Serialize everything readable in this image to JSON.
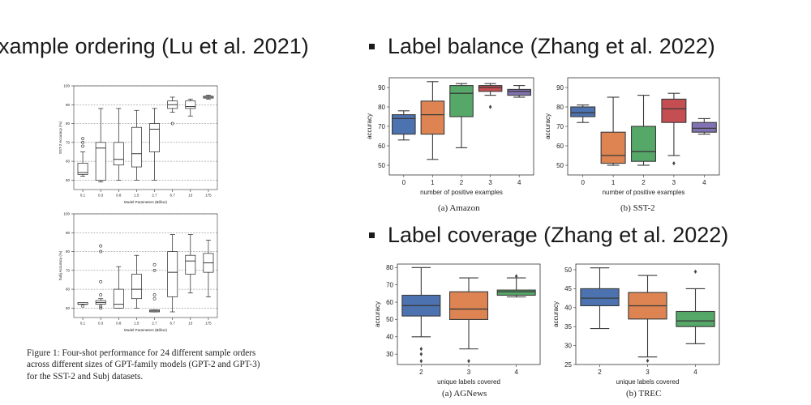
{
  "headings": {
    "ordering": "xample ordering (Lu et al. 2021)",
    "balance": "Label balance (Zhang et al. 2022)",
    "coverage": "Label coverage (Zhang et al. 2022)"
  },
  "figure_caption": "Figure 1: Four-shot performance for 24 different sample orders across different sizes of GPT-family models (GPT-2 and GPT-3) for the SST-2 and Subj datasets.",
  "captions": {
    "amazon": "(a) Amazon",
    "sst2": "(b) SST-2",
    "agnews": "(a) AGNews",
    "trec": "(b) TREC"
  },
  "colors": {
    "blue": "#4c72b0",
    "orange": "#dd8452",
    "green": "#55a868",
    "red": "#c44e52",
    "purple": "#8172b3"
  },
  "chart_data": [
    {
      "id": "sst2_size",
      "type": "box",
      "title": "",
      "xlabel": "Model Parameters (Billion)",
      "ylabel": "SST-2 Accuracy (%)",
      "ylim": [
        45,
        100
      ],
      "yticks": [
        50,
        60,
        70,
        80,
        90,
        100
      ],
      "grid": "horizontal dashed",
      "categories": [
        "0.1",
        "0.3",
        "0.8",
        "1.5",
        "2.7",
        "6.7",
        "13",
        "175"
      ],
      "boxes": [
        {
          "whislo": 52,
          "q1": 53,
          "med": 54,
          "q3": 59,
          "whishi": 65,
          "fliers": [
            68,
            70,
            72
          ],
          "color": "#ffffff"
        },
        {
          "whislo": 49,
          "q1": 50,
          "med": 67,
          "q3": 70,
          "whishi": 88,
          "fliers": [],
          "color": "#ffffff"
        },
        {
          "whislo": 50,
          "q1": 58,
          "med": 61,
          "q3": 70,
          "whishi": 88,
          "fliers": [],
          "color": "#ffffff"
        },
        {
          "whislo": 50,
          "q1": 57,
          "med": 64,
          "q3": 78,
          "whishi": 87,
          "fliers": [],
          "color": "#ffffff"
        },
        {
          "whislo": 50,
          "q1": 65,
          "med": 77,
          "q3": 80,
          "whishi": 88,
          "fliers": [],
          "color": "#ffffff"
        },
        {
          "whislo": 86,
          "q1": 88,
          "med": 90,
          "q3": 92,
          "whishi": 94,
          "fliers": [
            80
          ],
          "color": "#ffffff"
        },
        {
          "whislo": 84,
          "q1": 88,
          "med": 89,
          "q3": 92,
          "whishi": 93,
          "fliers": [],
          "color": "#ffffff"
        },
        {
          "whislo": 93,
          "q1": 93.5,
          "med": 94,
          "q3": 94.5,
          "whishi": 95,
          "fliers": [],
          "color": "#ffffff"
        }
      ]
    },
    {
      "id": "subj_size",
      "type": "box",
      "title": "",
      "xlabel": "Model Parameters (Billion)",
      "ylabel": "Subj Accuracy (%)",
      "ylim": [
        45,
        100
      ],
      "yticks": [
        50,
        60,
        70,
        80,
        90,
        100
      ],
      "grid": "horizontal dashed",
      "categories": [
        "0.1",
        "0.3",
        "0.8",
        "1.5",
        "2.7",
        "6.7",
        "13",
        "175"
      ],
      "boxes": [
        {
          "whislo": 52,
          "q1": 52,
          "med": 52,
          "q3": 53,
          "whishi": 53,
          "fliers": [
            51
          ],
          "color": "#ffffff"
        },
        {
          "whislo": 52,
          "q1": 52,
          "med": 53,
          "q3": 54,
          "whishi": 55,
          "fliers": [
            50,
            51,
            57,
            64,
            80,
            83
          ],
          "color": "#ffffff"
        },
        {
          "whislo": 50,
          "q1": 50,
          "med": 52,
          "q3": 60,
          "whishi": 72,
          "fliers": [],
          "color": "#ffffff"
        },
        {
          "whislo": 50,
          "q1": 55,
          "med": 60,
          "q3": 68,
          "whishi": 78,
          "fliers": [],
          "color": "#ffffff"
        },
        {
          "whislo": 48,
          "q1": 48,
          "med": 48.5,
          "q3": 49,
          "whishi": 49,
          "fliers": [
            55,
            57,
            70,
            73
          ],
          "color": "#ffffff"
        },
        {
          "whislo": 48,
          "q1": 56,
          "med": 69,
          "q3": 80,
          "whishi": 89,
          "fliers": [],
          "color": "#ffffff"
        },
        {
          "whislo": 58,
          "q1": 68,
          "med": 75,
          "q3": 78,
          "whishi": 89,
          "fliers": [],
          "color": "#ffffff"
        },
        {
          "whislo": 56,
          "q1": 69,
          "med": 74,
          "q3": 79,
          "whishi": 86,
          "fliers": [],
          "color": "#ffffff"
        }
      ]
    },
    {
      "id": "amazon",
      "type": "box",
      "title": "",
      "xlabel": "number of positive examples",
      "ylabel": "accuracy",
      "ylim": [
        45,
        95
      ],
      "yticks": [
        50,
        60,
        70,
        80,
        90
      ],
      "grid": "none",
      "categories": [
        "0",
        "1",
        "2",
        "3",
        "4"
      ],
      "boxes": [
        {
          "whislo": 63,
          "q1": 66,
          "med": 74,
          "q3": 76,
          "whishi": 78,
          "fliers": [],
          "color": "#4c72b0"
        },
        {
          "whislo": 53,
          "q1": 66,
          "med": 76,
          "q3": 83,
          "whishi": 93,
          "fliers": [],
          "color": "#dd8452"
        },
        {
          "whislo": 59,
          "q1": 75,
          "med": 87,
          "q3": 91,
          "whishi": 92,
          "fliers": [],
          "color": "#55a868"
        },
        {
          "whislo": 86,
          "q1": 88,
          "med": 90,
          "q3": 91,
          "whishi": 92,
          "fliers": [
            80
          ],
          "color": "#c44e52"
        },
        {
          "whislo": 85,
          "q1": 86,
          "med": 88,
          "q3": 89,
          "whishi": 91,
          "fliers": [],
          "color": "#8172b3"
        }
      ]
    },
    {
      "id": "sst2_balance",
      "type": "box",
      "title": "",
      "xlabel": "number of positive examples",
      "ylabel": "accuracy",
      "ylim": [
        45,
        95
      ],
      "yticks": [
        50,
        60,
        70,
        80,
        90
      ],
      "grid": "none",
      "categories": [
        "0",
        "1",
        "2",
        "3",
        "4"
      ],
      "boxes": [
        {
          "whislo": 72,
          "q1": 75,
          "med": 77,
          "q3": 80,
          "whishi": 81,
          "fliers": [],
          "color": "#4c72b0"
        },
        {
          "whislo": 50,
          "q1": 51,
          "med": 55,
          "q3": 67,
          "whishi": 85,
          "fliers": [],
          "color": "#dd8452"
        },
        {
          "whislo": 50,
          "q1": 52,
          "med": 57,
          "q3": 70,
          "whishi": 86,
          "fliers": [],
          "color": "#55a868"
        },
        {
          "whislo": 55,
          "q1": 72,
          "med": 79,
          "q3": 84,
          "whishi": 87,
          "fliers": [
            51
          ],
          "color": "#c44e52"
        },
        {
          "whislo": 66,
          "q1": 67,
          "med": 69,
          "q3": 72,
          "whishi": 74,
          "fliers": [],
          "color": "#8172b3"
        }
      ]
    },
    {
      "id": "agnews",
      "type": "box",
      "title": "",
      "xlabel": "unique labels covered",
      "ylabel": "accuracy",
      "ylim": [
        24,
        82
      ],
      "yticks": [
        30,
        40,
        50,
        60,
        70,
        80
      ],
      "grid": "none",
      "categories": [
        "2",
        "3",
        "4"
      ],
      "boxes": [
        {
          "whislo": 40,
          "q1": 52,
          "med": 58,
          "q3": 64,
          "whishi": 80,
          "fliers": [
            26,
            30,
            33
          ],
          "color": "#4c72b0"
        },
        {
          "whislo": 33,
          "q1": 50,
          "med": 56,
          "q3": 66,
          "whishi": 74,
          "fliers": [
            26
          ],
          "color": "#dd8452"
        },
        {
          "whislo": 63,
          "q1": 64,
          "med": 66,
          "q3": 67,
          "whishi": 74,
          "fliers": [
            75
          ],
          "color": "#55a868"
        }
      ]
    },
    {
      "id": "trec",
      "type": "box",
      "title": "",
      "xlabel": "unique labels covered",
      "ylabel": "accuracy",
      "ylim": [
        25,
        51.5
      ],
      "yticks": [
        25,
        30,
        35,
        40,
        45,
        50
      ],
      "grid": "none",
      "categories": [
        "2",
        "3",
        "4"
      ],
      "boxes": [
        {
          "whislo": 34.5,
          "q1": 40.5,
          "med": 42.5,
          "q3": 45,
          "whishi": 50.5,
          "fliers": [],
          "color": "#4c72b0"
        },
        {
          "whislo": 27,
          "q1": 37,
          "med": 40.5,
          "q3": 44,
          "whishi": 48.5,
          "fliers": [
            26
          ],
          "color": "#dd8452"
        },
        {
          "whislo": 30.5,
          "q1": 35,
          "med": 36.5,
          "q3": 39,
          "whishi": 45,
          "fliers": [
            49.5
          ],
          "color": "#55a868"
        }
      ]
    }
  ]
}
